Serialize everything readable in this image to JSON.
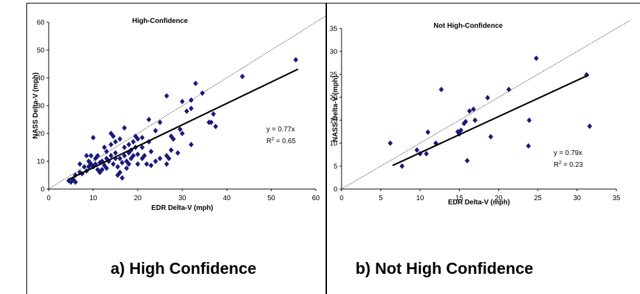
{
  "chart_data": [
    {
      "type": "scatter",
      "title": "High-Confidence",
      "xlabel": "EDR Delta-V (mph)",
      "ylabel": "NASS Delta-V (mph)",
      "xlim": [
        0,
        60
      ],
      "ylim": [
        0,
        60
      ],
      "xticks": [
        0,
        10,
        20,
        30,
        40,
        50,
        60
      ],
      "yticks": [
        0,
        10,
        20,
        30,
        40,
        50,
        60
      ],
      "equation": "y = 0.77x",
      "r2_prefix": "R",
      "r2_sup": "2",
      "r2_value": " = 0.65",
      "caption": "a) High Confidence",
      "marker_color": "#1a1a7c",
      "fit": {
        "slope": 0.77,
        "x_range": [
          4.5,
          56
        ]
      },
      "points": [
        [
          4.5,
          3
        ],
        [
          5,
          2.5
        ],
        [
          5.5,
          3.5
        ],
        [
          6,
          2.5
        ],
        [
          6,
          5
        ],
        [
          7,
          6
        ],
        [
          7.5,
          5.5
        ],
        [
          7,
          9
        ],
        [
          8,
          8
        ],
        [
          8.5,
          12
        ],
        [
          8.5,
          6.5
        ],
        [
          9,
          10
        ],
        [
          9,
          8
        ],
        [
          9.5,
          12
        ],
        [
          9.5,
          9
        ],
        [
          10,
          18.5
        ],
        [
          10,
          8
        ],
        [
          10.5,
          11
        ],
        [
          10.5,
          9
        ],
        [
          11,
          12
        ],
        [
          11,
          7
        ],
        [
          11.5,
          6
        ],
        [
          11.5,
          9.5
        ],
        [
          12,
          10
        ],
        [
          12,
          7
        ],
        [
          12.5,
          15
        ],
        [
          12.5,
          8.5
        ],
        [
          13,
          11
        ],
        [
          13,
          7.5
        ],
        [
          13,
          13.5
        ],
        [
          13.5,
          10
        ],
        [
          14,
          20
        ],
        [
          14,
          12
        ],
        [
          14,
          16
        ],
        [
          14.5,
          19
        ],
        [
          14.5,
          9
        ],
        [
          15,
          11
        ],
        [
          15,
          17
        ],
        [
          15,
          13
        ],
        [
          15.5,
          8
        ],
        [
          15.5,
          5
        ],
        [
          16,
          18
        ],
        [
          16,
          11
        ],
        [
          16,
          6
        ],
        [
          16.5,
          9.5
        ],
        [
          16.5,
          4
        ],
        [
          17,
          22
        ],
        [
          17,
          15
        ],
        [
          17,
          12
        ],
        [
          17.5,
          10
        ],
        [
          17.5,
          7.5
        ],
        [
          18,
          16
        ],
        [
          18,
          13
        ],
        [
          18,
          9
        ],
        [
          18.5,
          14
        ],
        [
          18.5,
          11
        ],
        [
          19,
          17
        ],
        [
          19,
          12
        ],
        [
          19.5,
          19
        ],
        [
          19.5,
          15
        ],
        [
          20,
          18
        ],
        [
          20,
          12.5
        ],
        [
          20,
          9
        ],
        [
          21,
          11
        ],
        [
          21,
          15
        ],
        [
          21,
          18.5
        ],
        [
          21.5,
          12
        ],
        [
          22,
          9
        ],
        [
          22.5,
          25
        ],
        [
          22.5,
          17
        ],
        [
          23,
          13.5
        ],
        [
          23,
          8.5
        ],
        [
          24,
          21
        ],
        [
          24,
          10
        ],
        [
          25,
          24
        ],
        [
          25,
          11
        ],
        [
          26.5,
          33.5
        ],
        [
          26.5,
          12
        ],
        [
          26.5,
          9
        ],
        [
          27,
          11
        ],
        [
          27.5,
          19
        ],
        [
          27.5,
          14
        ],
        [
          28,
          18
        ],
        [
          29,
          13
        ],
        [
          29.5,
          21.5
        ],
        [
          30,
          31.5
        ],
        [
          30,
          20
        ],
        [
          31,
          28
        ],
        [
          32,
          29
        ],
        [
          32,
          32
        ],
        [
          32,
          16
        ],
        [
          33,
          38
        ],
        [
          34.5,
          34.5
        ],
        [
          36,
          24
        ],
        [
          36.5,
          24
        ],
        [
          37,
          27
        ],
        [
          37.5,
          22.5
        ],
        [
          43.5,
          40.5
        ],
        [
          55.5,
          46.5
        ]
      ]
    },
    {
      "type": "scatter",
      "title": "Not High-Confidence",
      "xlabel": "EDR Delta-V (mph)",
      "ylabel": "NASS Delta-V (mph)",
      "xlim": [
        0,
        35
      ],
      "ylim": [
        0,
        35
      ],
      "xticks": [
        0,
        5,
        10,
        15,
        20,
        25,
        30,
        35
      ],
      "yticks": [
        0,
        5,
        10,
        15,
        20,
        25,
        30,
        35
      ],
      "equation": "y = 0.79x",
      "r2_prefix": "R",
      "r2_sup": "2",
      "r2_value": " = 0.23",
      "caption": "b) Not High Confidence",
      "marker_color": "#1a1a7c",
      "fit": {
        "slope": 0.79,
        "x_range": [
          6.5,
          31.5
        ]
      },
      "points": [
        [
          6.2,
          10
        ],
        [
          7.7,
          5
        ],
        [
          9.6,
          8.5
        ],
        [
          10,
          7.7
        ],
        [
          10.8,
          7.7
        ],
        [
          11,
          12.4
        ],
        [
          12,
          10
        ],
        [
          12.7,
          21.7
        ],
        [
          14.8,
          12.5
        ],
        [
          15,
          12
        ],
        [
          15.2,
          12.8
        ],
        [
          15.6,
          14.3
        ],
        [
          15.8,
          14.7
        ],
        [
          16,
          6.2
        ],
        [
          16.3,
          17
        ],
        [
          16.8,
          17.4
        ],
        [
          17,
          15
        ],
        [
          18.6,
          19.9
        ],
        [
          19,
          11.4
        ],
        [
          21.3,
          21.7
        ],
        [
          23.8,
          9.4
        ],
        [
          23.9,
          15
        ],
        [
          24.8,
          28.5
        ],
        [
          31.2,
          24.9
        ],
        [
          31.6,
          13.7
        ]
      ]
    }
  ]
}
